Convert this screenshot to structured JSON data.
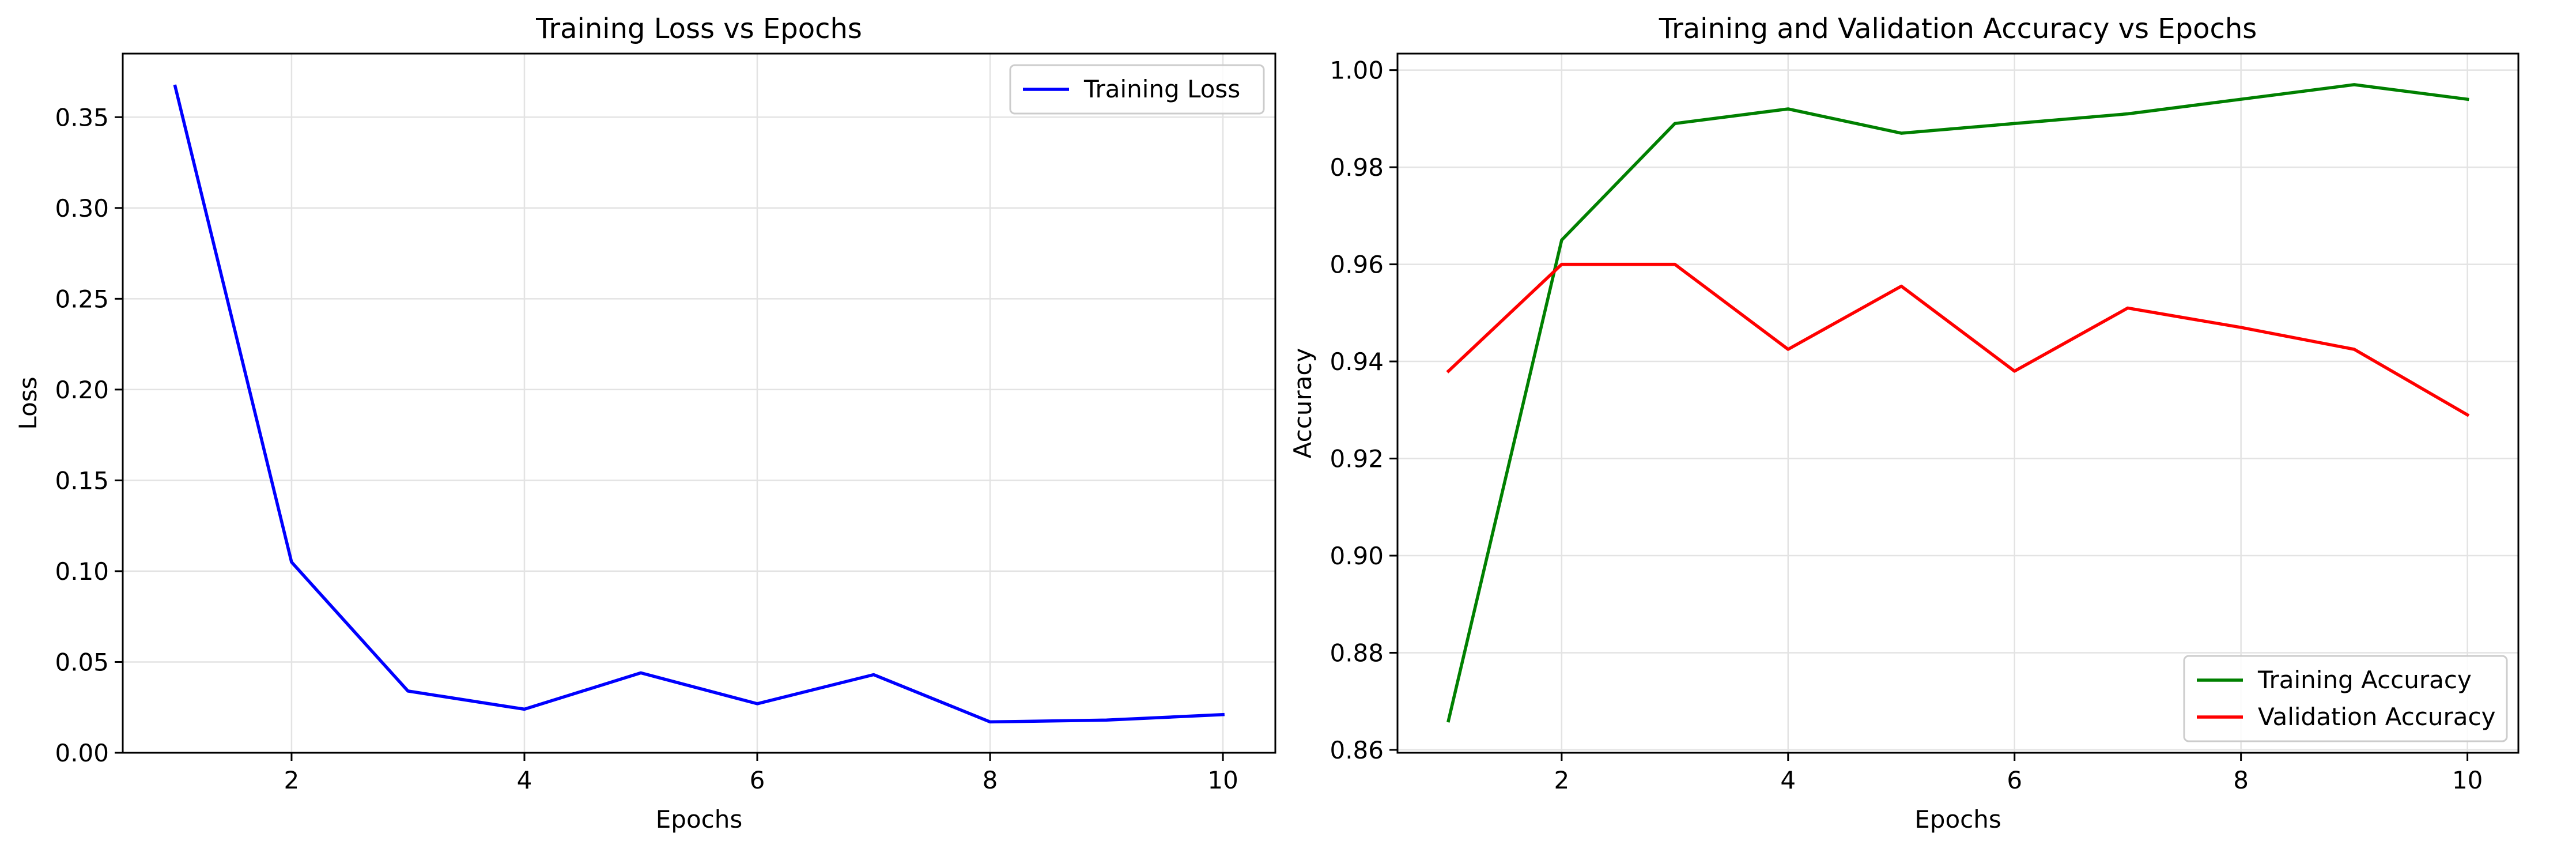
{
  "chart_data": [
    {
      "type": "line",
      "title": "Training Loss vs Epochs",
      "xlabel": "Epochs",
      "ylabel": "Loss",
      "x": [
        1,
        2,
        3,
        4,
        5,
        6,
        7,
        8,
        9,
        10
      ],
      "xlim": [
        0.55,
        10.45
      ],
      "ylim": [
        0,
        0.385
      ],
      "xticks": [
        2,
        4,
        6,
        8,
        10
      ],
      "yticks": [
        0.0,
        0.05,
        0.1,
        0.15,
        0.2,
        0.25,
        0.3,
        0.35
      ],
      "ytick_labels": [
        "0.00",
        "0.05",
        "0.10",
        "0.15",
        "0.20",
        "0.25",
        "0.30",
        "0.35"
      ],
      "grid": true,
      "legend_position": "top-right",
      "series": [
        {
          "name": "Training Loss",
          "color": "#0000ff",
          "values": [
            0.367,
            0.105,
            0.034,
            0.024,
            0.044,
            0.027,
            0.043,
            0.017,
            0.018,
            0.021
          ]
        }
      ]
    },
    {
      "type": "line",
      "title": "Training and Validation Accuracy vs Epochs",
      "xlabel": "Epochs",
      "ylabel": "Accuracy",
      "x": [
        1,
        2,
        3,
        4,
        5,
        6,
        7,
        8,
        9,
        10
      ],
      "xlim": [
        0.55,
        10.45
      ],
      "ylim": [
        0.8594,
        1.0034
      ],
      "xticks": [
        2,
        4,
        6,
        8,
        10
      ],
      "yticks": [
        0.86,
        0.88,
        0.9,
        0.92,
        0.94,
        0.96,
        0.98,
        1.0
      ],
      "ytick_labels": [
        "0.86",
        "0.88",
        "0.90",
        "0.92",
        "0.94",
        "0.96",
        "0.98",
        "1.00"
      ],
      "grid": true,
      "legend_position": "bottom-right",
      "series": [
        {
          "name": "Training Accuracy",
          "color": "#008000",
          "values": [
            0.866,
            0.965,
            0.989,
            0.992,
            0.987,
            0.989,
            0.991,
            0.994,
            0.997,
            0.994
          ]
        },
        {
          "name": "Validation Accuracy",
          "color": "#ff0000",
          "values": [
            0.938,
            0.96,
            0.96,
            0.9425,
            0.9555,
            0.938,
            0.951,
            0.947,
            0.9425,
            0.929
          ]
        }
      ]
    }
  ]
}
